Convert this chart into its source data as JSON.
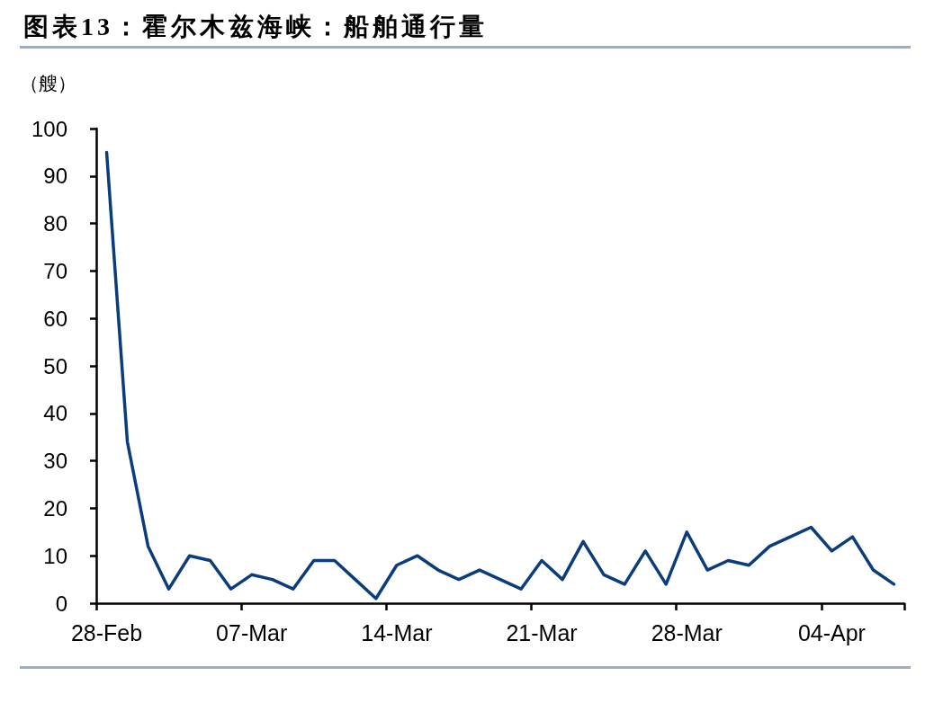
{
  "chart_data": {
    "type": "line",
    "title": "图表13：霍尔木兹海峡：船舶通行量",
    "ylabel": "（艘）",
    "categories": [
      "28-Feb",
      null,
      null,
      null,
      null,
      null,
      null,
      "07-Mar",
      null,
      null,
      null,
      null,
      null,
      null,
      "14-Mar",
      null,
      null,
      null,
      null,
      null,
      null,
      "21-Mar",
      null,
      null,
      null,
      null,
      null,
      null,
      "28-Mar",
      null,
      null,
      null,
      null,
      null,
      null,
      "04-Apr",
      null,
      null,
      null
    ],
    "series": [
      {
        "color": "#0b3d7d",
        "values": [
          95,
          34,
          12,
          3,
          10,
          9,
          3,
          6,
          5,
          3,
          9,
          9,
          5,
          1,
          8,
          10,
          7,
          5,
          7,
          5,
          3,
          9,
          5,
          13,
          6,
          4,
          11,
          4,
          15,
          7,
          9,
          8,
          12,
          14,
          16,
          11,
          14,
          7,
          4
        ]
      }
    ],
    "ylim": [
      0,
      100
    ],
    "yticks": [
      0,
      10,
      20,
      30,
      40,
      50,
      60,
      70,
      80,
      90,
      100
    ],
    "marker": "none",
    "grid": false
  }
}
